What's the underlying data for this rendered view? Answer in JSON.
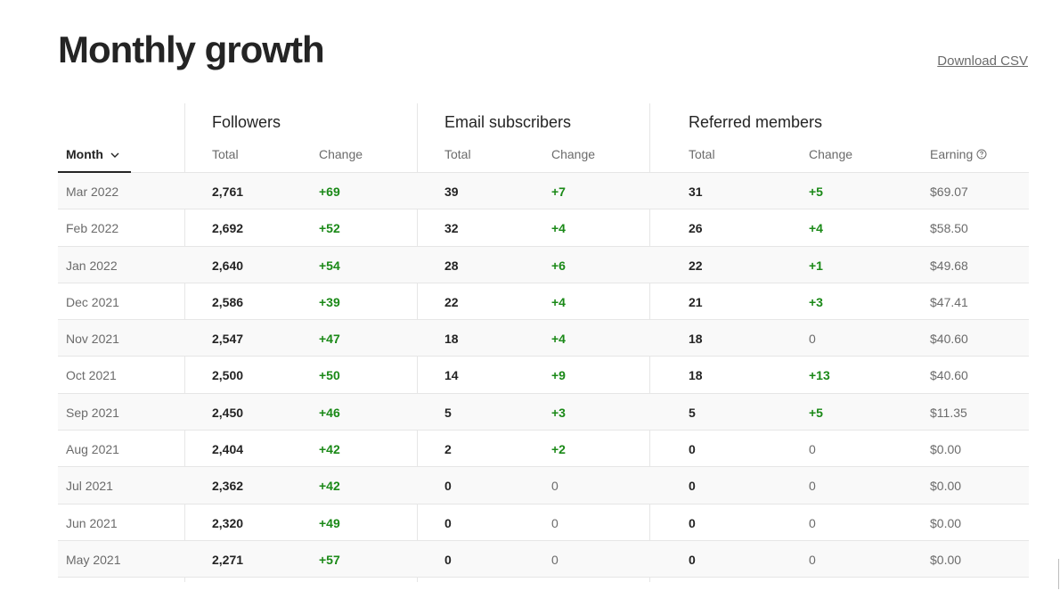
{
  "page": {
    "title": "Monthly growth",
    "download_label": "Download CSV"
  },
  "table": {
    "groups": {
      "followers": "Followers",
      "email": "Email subscribers",
      "referred": "Referred members"
    },
    "columns": {
      "month": "Month",
      "followers_total": "Total",
      "followers_change": "Change",
      "email_total": "Total",
      "email_change": "Change",
      "referred_total": "Total",
      "referred_change": "Change",
      "earning": "Earning"
    },
    "rows": [
      {
        "month": "Mar 2022",
        "f_total": "2,761",
        "f_change": "+69",
        "e_total": "39",
        "e_change": "+7",
        "r_total": "31",
        "r_change": "+5",
        "earning": "$69.07"
      },
      {
        "month": "Feb 2022",
        "f_total": "2,692",
        "f_change": "+52",
        "e_total": "32",
        "e_change": "+4",
        "r_total": "26",
        "r_change": "+4",
        "earning": "$58.50"
      },
      {
        "month": "Jan 2022",
        "f_total": "2,640",
        "f_change": "+54",
        "e_total": "28",
        "e_change": "+6",
        "r_total": "22",
        "r_change": "+1",
        "earning": "$49.68"
      },
      {
        "month": "Dec 2021",
        "f_total": "2,586",
        "f_change": "+39",
        "e_total": "22",
        "e_change": "+4",
        "r_total": "21",
        "r_change": "+3",
        "earning": "$47.41"
      },
      {
        "month": "Nov 2021",
        "f_total": "2,547",
        "f_change": "+47",
        "e_total": "18",
        "e_change": "+4",
        "r_total": "18",
        "r_change": "0",
        "earning": "$40.60"
      },
      {
        "month": "Oct 2021",
        "f_total": "2,500",
        "f_change": "+50",
        "e_total": "14",
        "e_change": "+9",
        "r_total": "18",
        "r_change": "+13",
        "earning": "$40.60"
      },
      {
        "month": "Sep 2021",
        "f_total": "2,450",
        "f_change": "+46",
        "e_total": "5",
        "e_change": "+3",
        "r_total": "5",
        "r_change": "+5",
        "earning": "$11.35"
      },
      {
        "month": "Aug 2021",
        "f_total": "2,404",
        "f_change": "+42",
        "e_total": "2",
        "e_change": "+2",
        "r_total": "0",
        "r_change": "0",
        "earning": "$0.00"
      },
      {
        "month": "Jul 2021",
        "f_total": "2,362",
        "f_change": "+42",
        "e_total": "0",
        "e_change": "0",
        "r_total": "0",
        "r_change": "0",
        "earning": "$0.00"
      },
      {
        "month": "Jun 2021",
        "f_total": "2,320",
        "f_change": "+49",
        "e_total": "0",
        "e_change": "0",
        "r_total": "0",
        "r_change": "0",
        "earning": "$0.00"
      },
      {
        "month": "May 2021",
        "f_total": "2,271",
        "f_change": "+57",
        "e_total": "0",
        "e_change": "0",
        "r_total": "0",
        "r_change": "0",
        "earning": "$0.00"
      }
    ]
  },
  "colors": {
    "positive": "#1a8917",
    "muted": "#6b6b6b",
    "text": "#242424",
    "divider": "#e6e6e6"
  },
  "icons": {
    "sort": "chevron-down-icon",
    "help": "help-circle-icon"
  }
}
